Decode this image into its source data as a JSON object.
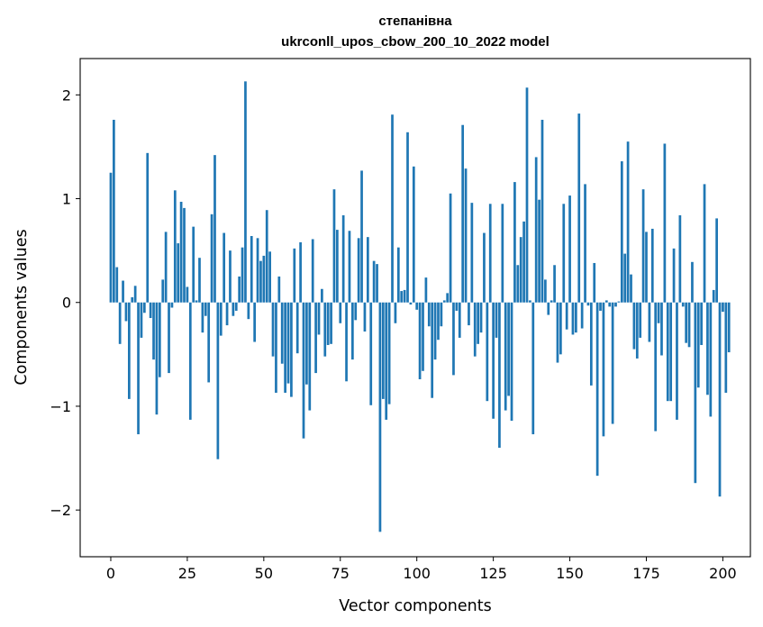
{
  "chart_data": {
    "type": "bar",
    "title": "степанівна",
    "subtitle": "ukrconll_upos_cbow_200_10_2022 model",
    "xlabel": "Vector components",
    "ylabel": "Components values",
    "xlim": [
      -10,
      209
    ],
    "ylim": [
      -2.45,
      2.35
    ],
    "xticks": [
      0,
      25,
      50,
      75,
      100,
      125,
      150,
      175,
      200
    ],
    "yticks": [
      -2,
      -1,
      0,
      1,
      2
    ],
    "ytick_labels": [
      "−2",
      "−1",
      "0",
      "1",
      "2"
    ],
    "grid": false,
    "color": "#1f77b4",
    "values": [
      1.25,
      1.76,
      0.34,
      -0.4,
      0.21,
      -0.18,
      -0.93,
      0.05,
      0.16,
      -1.27,
      -0.34,
      -0.1,
      1.44,
      -0.15,
      -0.55,
      -1.08,
      -0.72,
      0.22,
      0.68,
      -0.68,
      -0.05,
      1.08,
      0.57,
      0.97,
      0.91,
      0.15,
      -1.13,
      0.73,
      0.02,
      0.43,
      -0.29,
      -0.13,
      -0.77,
      0.85,
      1.42,
      -1.51,
      -0.32,
      0.67,
      -0.22,
      0.5,
      -0.13,
      -0.08,
      0.25,
      0.53,
      2.13,
      -0.16,
      0.64,
      -0.38,
      0.62,
      0.4,
      0.45,
      0.89,
      0.49,
      -0.52,
      -0.87,
      0.25,
      -0.59,
      -0.87,
      -0.78,
      -0.91,
      0.52,
      -0.49,
      0.58,
      -1.31,
      -0.79,
      -1.04,
      0.61,
      -0.68,
      -0.31,
      0.13,
      -0.52,
      -0.41,
      -0.4,
      1.09,
      0.7,
      -0.2,
      0.84,
      -0.76,
      0.69,
      -0.55,
      -0.17,
      0.62,
      1.27,
      -0.28,
      0.63,
      -0.99,
      0.4,
      0.37,
      -2.21,
      -0.93,
      -1.13,
      -0.98,
      1.81,
      -0.2,
      0.53,
      0.11,
      0.12,
      1.64,
      -0.02,
      1.31,
      -0.07,
      -0.74,
      -0.66,
      0.24,
      -0.23,
      -0.92,
      -0.55,
      -0.36,
      -0.23,
      0.02,
      0.09,
      1.05,
      -0.7,
      -0.08,
      -0.34,
      1.71,
      1.29,
      -0.22,
      0.96,
      -0.52,
      -0.4,
      -0.29,
      0.67,
      -0.95,
      0.95,
      -1.12,
      -0.34,
      -1.4,
      0.95,
      -1.04,
      -0.9,
      -1.14,
      1.16,
      0.36,
      0.63,
      0.78,
      2.07,
      0.02,
      -1.27,
      1.4,
      0.99,
      1.76,
      0.22,
      -0.12,
      0.02,
      0.36,
      -0.58,
      -0.5,
      0.95,
      -0.26,
      1.03,
      -0.31,
      -0.29,
      1.82,
      -0.25,
      1.14,
      -0.03,
      -0.8,
      0.38,
      -1.67,
      -0.08,
      -1.29,
      0.02,
      -0.04,
      -1.17,
      -0.04,
      0.01,
      1.36,
      0.47,
      1.55,
      0.27,
      -0.45,
      -0.54,
      -0.34,
      1.09,
      0.68,
      -0.38,
      0.71,
      -1.24,
      -0.2,
      -0.51,
      1.53,
      -0.95,
      -0.95,
      0.52,
      -1.13,
      0.84,
      -0.04,
      -0.39,
      -0.43,
      0.39,
      -1.74,
      -0.82,
      -0.41,
      1.14,
      -0.89,
      -1.1,
      0.12,
      0.81,
      -1.87,
      -0.09,
      -0.87,
      -0.48
    ]
  }
}
